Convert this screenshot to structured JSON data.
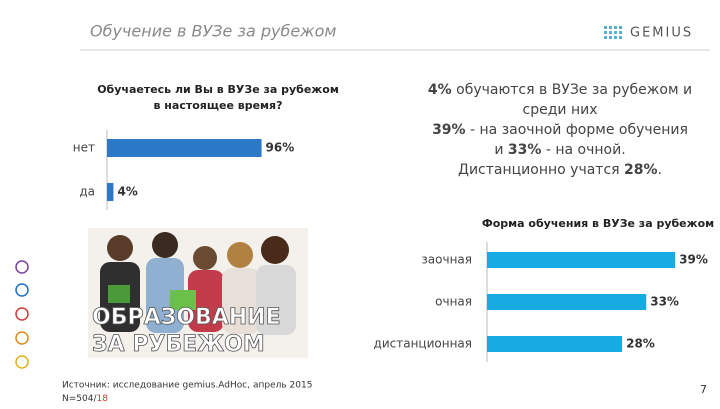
{
  "header": {
    "title": "Обучение в ВУЗе за рубежом",
    "logo": "GEMIUS"
  },
  "chart_data": [
    {
      "type": "hbar",
      "title": [
        "Обучаетесь ли Вы в ВУЗе за рубежом",
        "в настоящее время?"
      ],
      "categories": [
        "нет",
        "да"
      ],
      "values": [
        96,
        4
      ],
      "value_labels": [
        "96%",
        "4%"
      ],
      "color": "#2a78c6",
      "xlim": [
        0,
        100
      ]
    },
    {
      "type": "hbar",
      "title": [
        "Форма обучения в ВУЗе за рубежом"
      ],
      "categories": [
        "заочная",
        "очная",
        "дистанционная"
      ],
      "values": [
        39,
        33,
        28
      ],
      "value_labels": [
        "39%",
        "33%",
        "28%"
      ],
      "color": "#18aae3",
      "xlim": [
        0,
        40
      ]
    }
  ],
  "summary": [
    [
      {
        "text": "4%",
        "bold": true
      },
      {
        "text": " обучаются в ВУЗе за рубежом и"
      }
    ],
    [
      {
        "text": "среди них"
      }
    ],
    [
      {
        "text": "39%",
        "bold": true
      },
      {
        "text": " - на заочной форме обучения"
      }
    ],
    [
      {
        "text": "и "
      },
      {
        "text": "33%",
        "bold": true
      },
      {
        "text": " - на очной."
      }
    ],
    [
      {
        "text": "Дистанционно учатся "
      },
      {
        "text": "28%",
        "bold": true
      },
      {
        "text": "."
      }
    ]
  ],
  "image_caption": [
    "ОБРАЗОВАНИЕ",
    "ЗА РУБЕЖОМ"
  ],
  "source": "Источник: исследование gemius.AdHoc, апрель 2015",
  "sample": "N=504/",
  "sample_highlight": "18",
  "page_number": "7"
}
